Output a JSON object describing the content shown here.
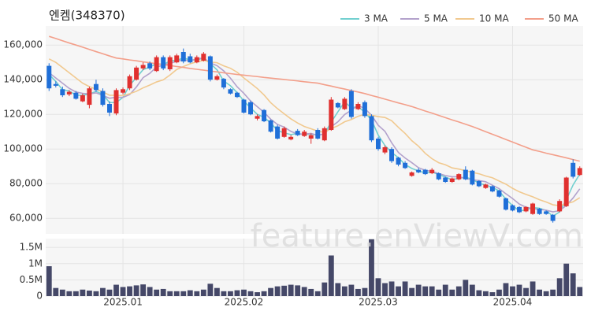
{
  "watermark": "feature.enViewV.com",
  "chart_data": [
    {
      "type": "candlestick",
      "title": "엔켐(348370)",
      "up_color": "#e0302f",
      "down_color": "#1f6fd8",
      "grid": true,
      "legend": "top-right",
      "ylim": [
        51000,
        171000
      ],
      "yticks": [
        {
          "value": 60000,
          "label": "60,000"
        },
        {
          "value": 80000,
          "label": "80,000"
        },
        {
          "value": 100000,
          "label": "100,000"
        },
        {
          "value": 120000,
          "label": "120,000"
        },
        {
          "value": 140000,
          "label": "140,000"
        },
        {
          "value": 160000,
          "label": "160,000"
        }
      ],
      "open": [
        148000,
        137500,
        134500,
        131500,
        132500,
        127500,
        125500,
        137500,
        133500,
        126000,
        120500,
        132500,
        135000,
        140000,
        146500,
        149500,
        145000,
        153000,
        146000,
        150000,
        156000,
        153500,
        150000,
        151000,
        153500,
        140000,
        140500,
        134500,
        132500,
        128500,
        127000,
        117500,
        122500,
        116500,
        113000,
        107000,
        105500,
        110500,
        107500,
        106000,
        111000,
        105000,
        111000,
        126500,
        123000,
        133500,
        123000,
        127000,
        119000,
        106000,
        98000,
        100000,
        95000,
        92000,
        84500,
        88000,
        88000,
        86000,
        86000,
        83500,
        81000,
        82500,
        88000,
        87500,
        81500,
        77500,
        78500,
        76000,
        71500,
        67500,
        66500,
        64000,
        62500,
        65500,
        64000,
        62000,
        64000,
        67000,
        92000,
        85000
      ],
      "high": [
        149500,
        139000,
        136000,
        134000,
        133500,
        132000,
        136000,
        140000,
        135000,
        127500,
        135000,
        135500,
        143000,
        148000,
        150000,
        150500,
        154000,
        154000,
        154000,
        155000,
        158000,
        155000,
        154000,
        156000,
        154000,
        143000,
        141000,
        135000,
        133000,
        129000,
        128000,
        120000,
        123000,
        117000,
        114000,
        113000,
        108000,
        111500,
        111000,
        109000,
        112000,
        113000,
        130000,
        127000,
        130000,
        134500,
        127000,
        128000,
        120000,
        107000,
        102000,
        101000,
        95500,
        93000,
        87000,
        89000,
        88500,
        89000,
        86500,
        84000,
        83500,
        86000,
        90000,
        88000,
        82000,
        80000,
        79000,
        76500,
        72000,
        68000,
        67000,
        67000,
        69000,
        66000,
        64500,
        62500,
        71000,
        84000,
        94000,
        90000
      ],
      "low": [
        133500,
        135500,
        130000,
        130500,
        128500,
        127000,
        123500,
        133000,
        124500,
        119000,
        119500,
        131500,
        134000,
        139500,
        145500,
        145500,
        144500,
        145500,
        145000,
        149500,
        149500,
        149500,
        149500,
        150500,
        139000,
        139500,
        134500,
        131500,
        129500,
        120500,
        119500,
        116500,
        115500,
        109500,
        105500,
        106500,
        105000,
        107500,
        107000,
        103000,
        105500,
        104500,
        110500,
        123500,
        122500,
        117500,
        122500,
        118000,
        104000,
        99000,
        97000,
        92000,
        90000,
        88500,
        84000,
        86000,
        85000,
        85500,
        82000,
        80500,
        80500,
        82000,
        82000,
        79000,
        78000,
        77000,
        75000,
        72000,
        64500,
        64000,
        63000,
        63500,
        62000,
        62000,
        62000,
        57500,
        63500,
        66500,
        83000,
        84500
      ],
      "close": [
        135000,
        136500,
        131000,
        133000,
        129000,
        131000,
        135000,
        134000,
        125500,
        121000,
        134000,
        134500,
        142000,
        147000,
        148500,
        146500,
        153000,
        146500,
        153000,
        154000,
        150500,
        150000,
        153000,
        155000,
        140000,
        142000,
        135500,
        132000,
        130000,
        121000,
        120000,
        119000,
        116000,
        110000,
        106000,
        112000,
        107000,
        108000,
        110000,
        108000,
        106000,
        112000,
        128500,
        124000,
        129000,
        118500,
        126000,
        119000,
        105000,
        100000,
        101000,
        93000,
        91000,
        89000,
        86500,
        86500,
        85500,
        88000,
        82500,
        81000,
        83000,
        85500,
        82500,
        79500,
        78500,
        79500,
        75500,
        72500,
        65000,
        64500,
        63500,
        66500,
        68500,
        62500,
        62500,
        58500,
        70000,
        83500,
        84000,
        89000
      ],
      "series": [
        {
          "name": "3 MA",
          "color": "#72d0d0",
          "values": [
            143000,
            139000,
            134200,
            133500,
            131000,
            131000,
            131700,
            133300,
            131500,
            126800,
            126800,
            129800,
            136800,
            141200,
            145800,
            147300,
            149300,
            148700,
            150800,
            151200,
            152500,
            151500,
            151200,
            152700,
            149300,
            145700,
            139200,
            136500,
            132500,
            127700,
            123700,
            120000,
            118300,
            115000,
            110700,
            109300,
            108300,
            109000,
            108300,
            108700,
            108000,
            108700,
            115500,
            121500,
            127200,
            123800,
            124500,
            121200,
            116700,
            108000,
            102000,
            98000,
            95000,
            91000,
            88800,
            87300,
            86200,
            86700,
            85300,
            83800,
            82200,
            83200,
            83700,
            82500,
            80200,
            79200,
            77800,
            75800,
            71000,
            67300,
            64300,
            64800,
            66200,
            65800,
            64500,
            61200,
            63700,
            70700,
            79200,
            85500
          ]
        },
        {
          "name": "5 MA",
          "color": "#b3a2cc",
          "values": [
            144000,
            141000,
            138000,
            135000,
            132900,
            132100,
            131800,
            132400,
            130900,
            129300,
            129900,
            129800,
            131400,
            135800,
            141200,
            143700,
            147400,
            148300,
            149500,
            150600,
            151400,
            150800,
            152100,
            152500,
            149700,
            148100,
            145100,
            140900,
            135900,
            132100,
            127700,
            124400,
            121200,
            117200,
            114200,
            112600,
            110200,
            108600,
            108600,
            109000,
            107800,
            108800,
            112900,
            115700,
            119900,
            122400,
            125200,
            123300,
            119500,
            113700,
            110200,
            103600,
            98000,
            94800,
            92100,
            89200,
            87700,
            87100,
            85800,
            84700,
            84000,
            84000,
            82900,
            82300,
            81800,
            81100,
            79100,
            77100,
            74200,
            71400,
            68200,
            66400,
            65600,
            65100,
            64700,
            63700,
            64400,
            67400,
            71700,
            77000
          ]
        },
        {
          "name": "10 MA",
          "color": "#f1c98f",
          "values": [
            152000,
            150000,
            147000,
            144000,
            141000,
            138000,
            136000,
            134500,
            133000,
            131000,
            131000,
            130800,
            131900,
            133300,
            135300,
            136900,
            138700,
            139900,
            142700,
            145900,
            147600,
            149200,
            150300,
            151100,
            150200,
            149800,
            148000,
            146600,
            144300,
            141000,
            138000,
            134900,
            131200,
            126700,
            123300,
            120300,
            117400,
            115000,
            113000,
            111700,
            110300,
            109600,
            111800,
            113400,
            115700,
            117000,
            118900,
            120000,
            119500,
            118700,
            118200,
            116300,
            112500,
            109000,
            104800,
            101600,
            97500,
            94400,
            92100,
            90900,
            89100,
            88400,
            87500,
            86500,
            85700,
            84400,
            83400,
            81500,
            79700,
            77300,
            75300,
            73800,
            72400,
            70700,
            69400,
            67800,
            67300,
            68400,
            69500,
            71900
          ]
        },
        {
          "name": "50 MA",
          "color": "#f39f8a",
          "values": [
            165000,
            163800,
            162500,
            161200,
            160000,
            158800,
            157500,
            156200,
            155000,
            153700,
            152500,
            152000,
            151400,
            150900,
            150300,
            149800,
            149200,
            148700,
            148200,
            147600,
            147100,
            146500,
            146000,
            145500,
            145000,
            144500,
            144000,
            143500,
            143000,
            142600,
            142200,
            141800,
            141300,
            140900,
            140500,
            140100,
            139700,
            139300,
            138800,
            138400,
            138000,
            137100,
            136300,
            135400,
            134600,
            133700,
            132900,
            132000,
            130900,
            129900,
            128800,
            127700,
            126600,
            125600,
            124500,
            123200,
            121900,
            120700,
            119400,
            118100,
            116800,
            115600,
            114300,
            113000,
            111500,
            110000,
            108500,
            107000,
            105500,
            104000,
            102500,
            101000,
            99500,
            98600,
            97600,
            96700,
            95800,
            94900,
            93900,
            93000
          ]
        }
      ]
    },
    {
      "type": "bar",
      "color": "#454868",
      "grid": true,
      "categories": [
        null,
        null,
        null,
        null,
        null,
        null,
        null,
        null,
        null,
        null,
        null,
        "2025.01",
        null,
        null,
        null,
        null,
        null,
        null,
        null,
        null,
        null,
        null,
        null,
        null,
        null,
        null,
        null,
        null,
        null,
        "2025.02",
        null,
        null,
        null,
        null,
        null,
        null,
        null,
        null,
        null,
        null,
        null,
        null,
        null,
        null,
        null,
        null,
        null,
        null,
        null,
        "2025.03",
        null,
        null,
        null,
        null,
        null,
        null,
        null,
        null,
        null,
        null,
        null,
        null,
        null,
        null,
        null,
        null,
        null,
        null,
        null,
        "2025.04",
        null,
        null,
        null,
        null,
        null,
        null,
        null,
        null,
        null,
        null
      ],
      "values": [
        920000,
        250000,
        200000,
        150000,
        150000,
        200000,
        170000,
        150000,
        250000,
        200000,
        350000,
        280000,
        300000,
        330000,
        360000,
        280000,
        200000,
        220000,
        150000,
        150000,
        150000,
        180000,
        150000,
        200000,
        380000,
        250000,
        150000,
        150000,
        180000,
        200000,
        150000,
        120000,
        150000,
        250000,
        300000,
        320000,
        350000,
        330000,
        280000,
        220000,
        150000,
        420000,
        1250000,
        400000,
        300000,
        350000,
        220000,
        250000,
        1750000,
        550000,
        400000,
        450000,
        300000,
        450000,
        250000,
        350000,
        300000,
        300000,
        200000,
        350000,
        200000,
        300000,
        500000,
        350000,
        180000,
        150000,
        120000,
        200000,
        400000,
        300000,
        350000,
        250000,
        450000,
        200000,
        150000,
        200000,
        550000,
        1000000,
        700000,
        280000
      ],
      "ylim": [
        0,
        1770000
      ],
      "yticks": [
        0,
        {
          "value": 500000,
          "label": "0.5M"
        },
        {
          "value": 1000000,
          "label": "1M"
        },
        {
          "value": 1500000,
          "label": "1.5M"
        }
      ]
    }
  ]
}
